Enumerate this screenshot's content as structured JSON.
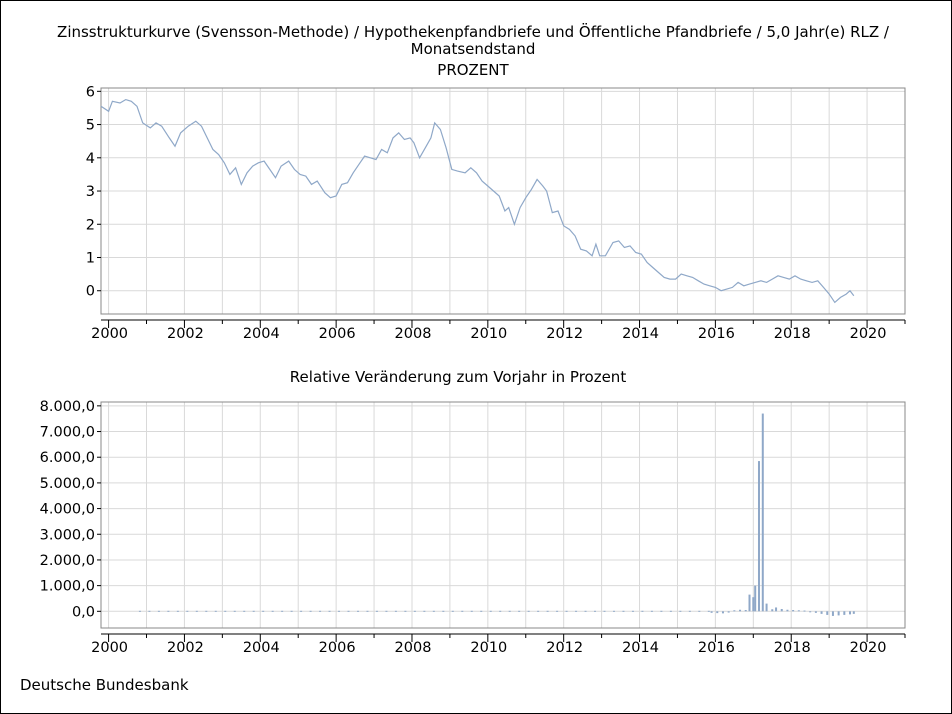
{
  "chart_data": [
    {
      "type": "line",
      "title_lines": [
        "Zinsstrukturkurve (Svensson-Methode) / Hypothekenpfandbriefe und Öffentliche Pfandbriefe / 5,0 Jahr(e) RLZ /",
        "Monatsendstand",
        "PROZENT"
      ],
      "xlabel": "",
      "ylabel": "",
      "xlim": [
        1999.8,
        2021.0
      ],
      "ylim": [
        -0.7,
        6.1
      ],
      "grid": true,
      "x_ticks": [
        2000,
        2002,
        2004,
        2006,
        2008,
        2010,
        2012,
        2014,
        2016,
        2018,
        2020
      ],
      "x_tick_labels": [
        "2000",
        "2002",
        "2004",
        "2006",
        "2008",
        "2010",
        "2012",
        "2014",
        "2016",
        "2018",
        "2020"
      ],
      "y_ticks": [
        0,
        1,
        2,
        3,
        4,
        5,
        6
      ],
      "y_tick_labels": [
        "0",
        "1",
        "2",
        "3",
        "4",
        "5",
        "6"
      ],
      "series": [
        {
          "color": "#8fa8c8",
          "points": [
            [
              1999.8,
              5.55
            ],
            [
              2000.0,
              5.4
            ],
            [
              2000.1,
              5.7
            ],
            [
              2000.3,
              5.65
            ],
            [
              2000.45,
              5.75
            ],
            [
              2000.6,
              5.7
            ],
            [
              2000.75,
              5.55
            ],
            [
              2000.9,
              5.05
            ],
            [
              2001.1,
              4.9
            ],
            [
              2001.25,
              5.05
            ],
            [
              2001.4,
              4.95
            ],
            [
              2001.6,
              4.6
            ],
            [
              2001.75,
              4.35
            ],
            [
              2001.9,
              4.75
            ],
            [
              2002.1,
              4.95
            ],
            [
              2002.3,
              5.1
            ],
            [
              2002.45,
              4.95
            ],
            [
              2002.6,
              4.6
            ],
            [
              2002.75,
              4.25
            ],
            [
              2002.9,
              4.1
            ],
            [
              2003.05,
              3.85
            ],
            [
              2003.2,
              3.5
            ],
            [
              2003.35,
              3.7
            ],
            [
              2003.5,
              3.2
            ],
            [
              2003.65,
              3.55
            ],
            [
              2003.8,
              3.75
            ],
            [
              2003.95,
              3.85
            ],
            [
              2004.1,
              3.9
            ],
            [
              2004.25,
              3.65
            ],
            [
              2004.4,
              3.4
            ],
            [
              2004.55,
              3.75
            ],
            [
              2004.75,
              3.9
            ],
            [
              2004.9,
              3.65
            ],
            [
              2005.05,
              3.5
            ],
            [
              2005.2,
              3.45
            ],
            [
              2005.35,
              3.2
            ],
            [
              2005.5,
              3.3
            ],
            [
              2005.7,
              2.95
            ],
            [
              2005.85,
              2.8
            ],
            [
              2006.0,
              2.85
            ],
            [
              2006.15,
              3.2
            ],
            [
              2006.3,
              3.25
            ],
            [
              2006.45,
              3.55
            ],
            [
              2006.6,
              3.8
            ],
            [
              2006.75,
              4.05
            ],
            [
              2006.9,
              4.0
            ],
            [
              2007.05,
              3.95
            ],
            [
              2007.2,
              4.25
            ],
            [
              2007.35,
              4.15
            ],
            [
              2007.5,
              4.6
            ],
            [
              2007.65,
              4.75
            ],
            [
              2007.8,
              4.55
            ],
            [
              2007.95,
              4.6
            ],
            [
              2008.05,
              4.45
            ],
            [
              2008.2,
              4.0
            ],
            [
              2008.35,
              4.3
            ],
            [
              2008.5,
              4.6
            ],
            [
              2008.6,
              5.05
            ],
            [
              2008.75,
              4.85
            ],
            [
              2008.9,
              4.3
            ],
            [
              2009.05,
              3.65
            ],
            [
              2009.2,
              3.6
            ],
            [
              2009.4,
              3.55
            ],
            [
              2009.55,
              3.7
            ],
            [
              2009.7,
              3.55
            ],
            [
              2009.85,
              3.3
            ],
            [
              2010.0,
              3.15
            ],
            [
              2010.15,
              3.0
            ],
            [
              2010.3,
              2.85
            ],
            [
              2010.45,
              2.4
            ],
            [
              2010.55,
              2.5
            ],
            [
              2010.7,
              2.0
            ],
            [
              2010.85,
              2.5
            ],
            [
              2011.0,
              2.8
            ],
            [
              2011.15,
              3.05
            ],
            [
              2011.3,
              3.35
            ],
            [
              2011.45,
              3.15
            ],
            [
              2011.55,
              3.0
            ],
            [
              2011.7,
              2.35
            ],
            [
              2011.85,
              2.4
            ],
            [
              2012.0,
              1.95
            ],
            [
              2012.15,
              1.85
            ],
            [
              2012.3,
              1.65
            ],
            [
              2012.45,
              1.25
            ],
            [
              2012.6,
              1.2
            ],
            [
              2012.75,
              1.05
            ],
            [
              2012.85,
              1.4
            ],
            [
              2012.95,
              1.05
            ],
            [
              2013.1,
              1.05
            ],
            [
              2013.3,
              1.45
            ],
            [
              2013.45,
              1.5
            ],
            [
              2013.6,
              1.3
            ],
            [
              2013.75,
              1.35
            ],
            [
              2013.9,
              1.15
            ],
            [
              2014.05,
              1.1
            ],
            [
              2014.2,
              0.85
            ],
            [
              2014.35,
              0.7
            ],
            [
              2014.5,
              0.55
            ],
            [
              2014.65,
              0.4
            ],
            [
              2014.8,
              0.35
            ],
            [
              2014.95,
              0.35
            ],
            [
              2015.1,
              0.5
            ],
            [
              2015.25,
              0.45
            ],
            [
              2015.4,
              0.4
            ],
            [
              2015.55,
              0.3
            ],
            [
              2015.7,
              0.2
            ],
            [
              2015.85,
              0.15
            ],
            [
              2016.0,
              0.1
            ],
            [
              2016.15,
              0.0
            ],
            [
              2016.3,
              0.05
            ],
            [
              2016.45,
              0.1
            ],
            [
              2016.6,
              0.25
            ],
            [
              2016.75,
              0.15
            ],
            [
              2016.9,
              0.2
            ],
            [
              2017.05,
              0.25
            ],
            [
              2017.2,
              0.3
            ],
            [
              2017.35,
              0.25
            ],
            [
              2017.5,
              0.35
            ],
            [
              2017.65,
              0.45
            ],
            [
              2017.8,
              0.4
            ],
            [
              2017.95,
              0.35
            ],
            [
              2018.1,
              0.45
            ],
            [
              2018.25,
              0.35
            ],
            [
              2018.4,
              0.3
            ],
            [
              2018.55,
              0.25
            ],
            [
              2018.7,
              0.3
            ],
            [
              2018.85,
              0.1
            ],
            [
              2019.0,
              -0.1
            ],
            [
              2019.15,
              -0.35
            ],
            [
              2019.3,
              -0.2
            ],
            [
              2019.45,
              -0.1
            ],
            [
              2019.55,
              0.0
            ],
            [
              2019.65,
              -0.15
            ]
          ]
        }
      ]
    },
    {
      "type": "bar",
      "title": "Relative Veränderung zum Vorjahr in Prozent",
      "xlabel": "",
      "ylabel": "",
      "xlim": [
        1999.8,
        2021.0
      ],
      "ylim": [
        -650,
        8150
      ],
      "grid": true,
      "x_ticks": [
        2000,
        2002,
        2004,
        2006,
        2008,
        2010,
        2012,
        2014,
        2016,
        2018,
        2020
      ],
      "x_tick_labels": [
        "2000",
        "2002",
        "2004",
        "2006",
        "2008",
        "2010",
        "2012",
        "2014",
        "2016",
        "2018",
        "2020"
      ],
      "y_ticks": [
        0,
        1000,
        2000,
        3000,
        4000,
        5000,
        6000,
        7000,
        8000
      ],
      "y_tick_labels": [
        "0,0",
        "1.000,0",
        "2.000,0",
        "3.000,0",
        "4.000,0",
        "5.000,0",
        "6.000,0",
        "7.000,0",
        "8.000,0"
      ],
      "series": [
        {
          "color": "#8fa8c8",
          "bars": [
            [
              2015.9,
              -60
            ],
            [
              2016.05,
              -70
            ],
            [
              2016.2,
              -80
            ],
            [
              2016.35,
              -50
            ],
            [
              2016.5,
              40
            ],
            [
              2016.65,
              60
            ],
            [
              2016.8,
              50
            ],
            [
              2016.9,
              650
            ],
            [
              2017.0,
              550
            ],
            [
              2017.05,
              1000
            ],
            [
              2017.15,
              5850
            ],
            [
              2017.25,
              7700
            ],
            [
              2017.35,
              300
            ],
            [
              2017.5,
              80
            ],
            [
              2017.6,
              150
            ],
            [
              2017.75,
              90
            ],
            [
              2017.9,
              60
            ],
            [
              2018.05,
              50
            ],
            [
              2018.2,
              40
            ],
            [
              2018.35,
              30
            ],
            [
              2018.5,
              -30
            ],
            [
              2018.65,
              -60
            ],
            [
              2018.8,
              -100
            ],
            [
              2018.95,
              -140
            ],
            [
              2019.1,
              -180
            ],
            [
              2019.25,
              -160
            ],
            [
              2019.4,
              -140
            ],
            [
              2019.55,
              -120
            ],
            [
              2019.65,
              -100
            ]
          ]
        }
      ]
    }
  ],
  "footer": {
    "source": "Deutsche Bundesbank"
  }
}
